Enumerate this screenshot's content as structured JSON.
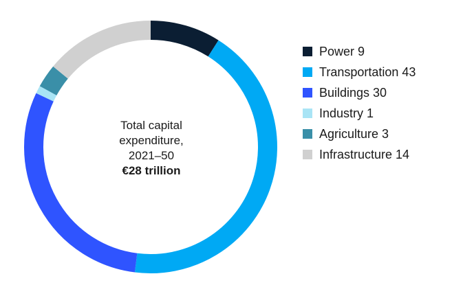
{
  "chart_data": {
    "type": "pie",
    "style": "donut",
    "categories": [
      "Power",
      "Transportation",
      "Buildings",
      "Industry",
      "Agriculture",
      "Infrastructure"
    ],
    "values": [
      9,
      43,
      30,
      1,
      3,
      14
    ],
    "colors": [
      "#0b1e33",
      "#00a9f4",
      "#2f54ff",
      "#a9e4f5",
      "#3a8fa8",
      "#d0d0d0"
    ],
    "center_label": {
      "line1": "Total capital",
      "line2": "expenditure,",
      "line3": "2021–50",
      "total": "€28 trillion"
    },
    "legend_position": "right"
  }
}
